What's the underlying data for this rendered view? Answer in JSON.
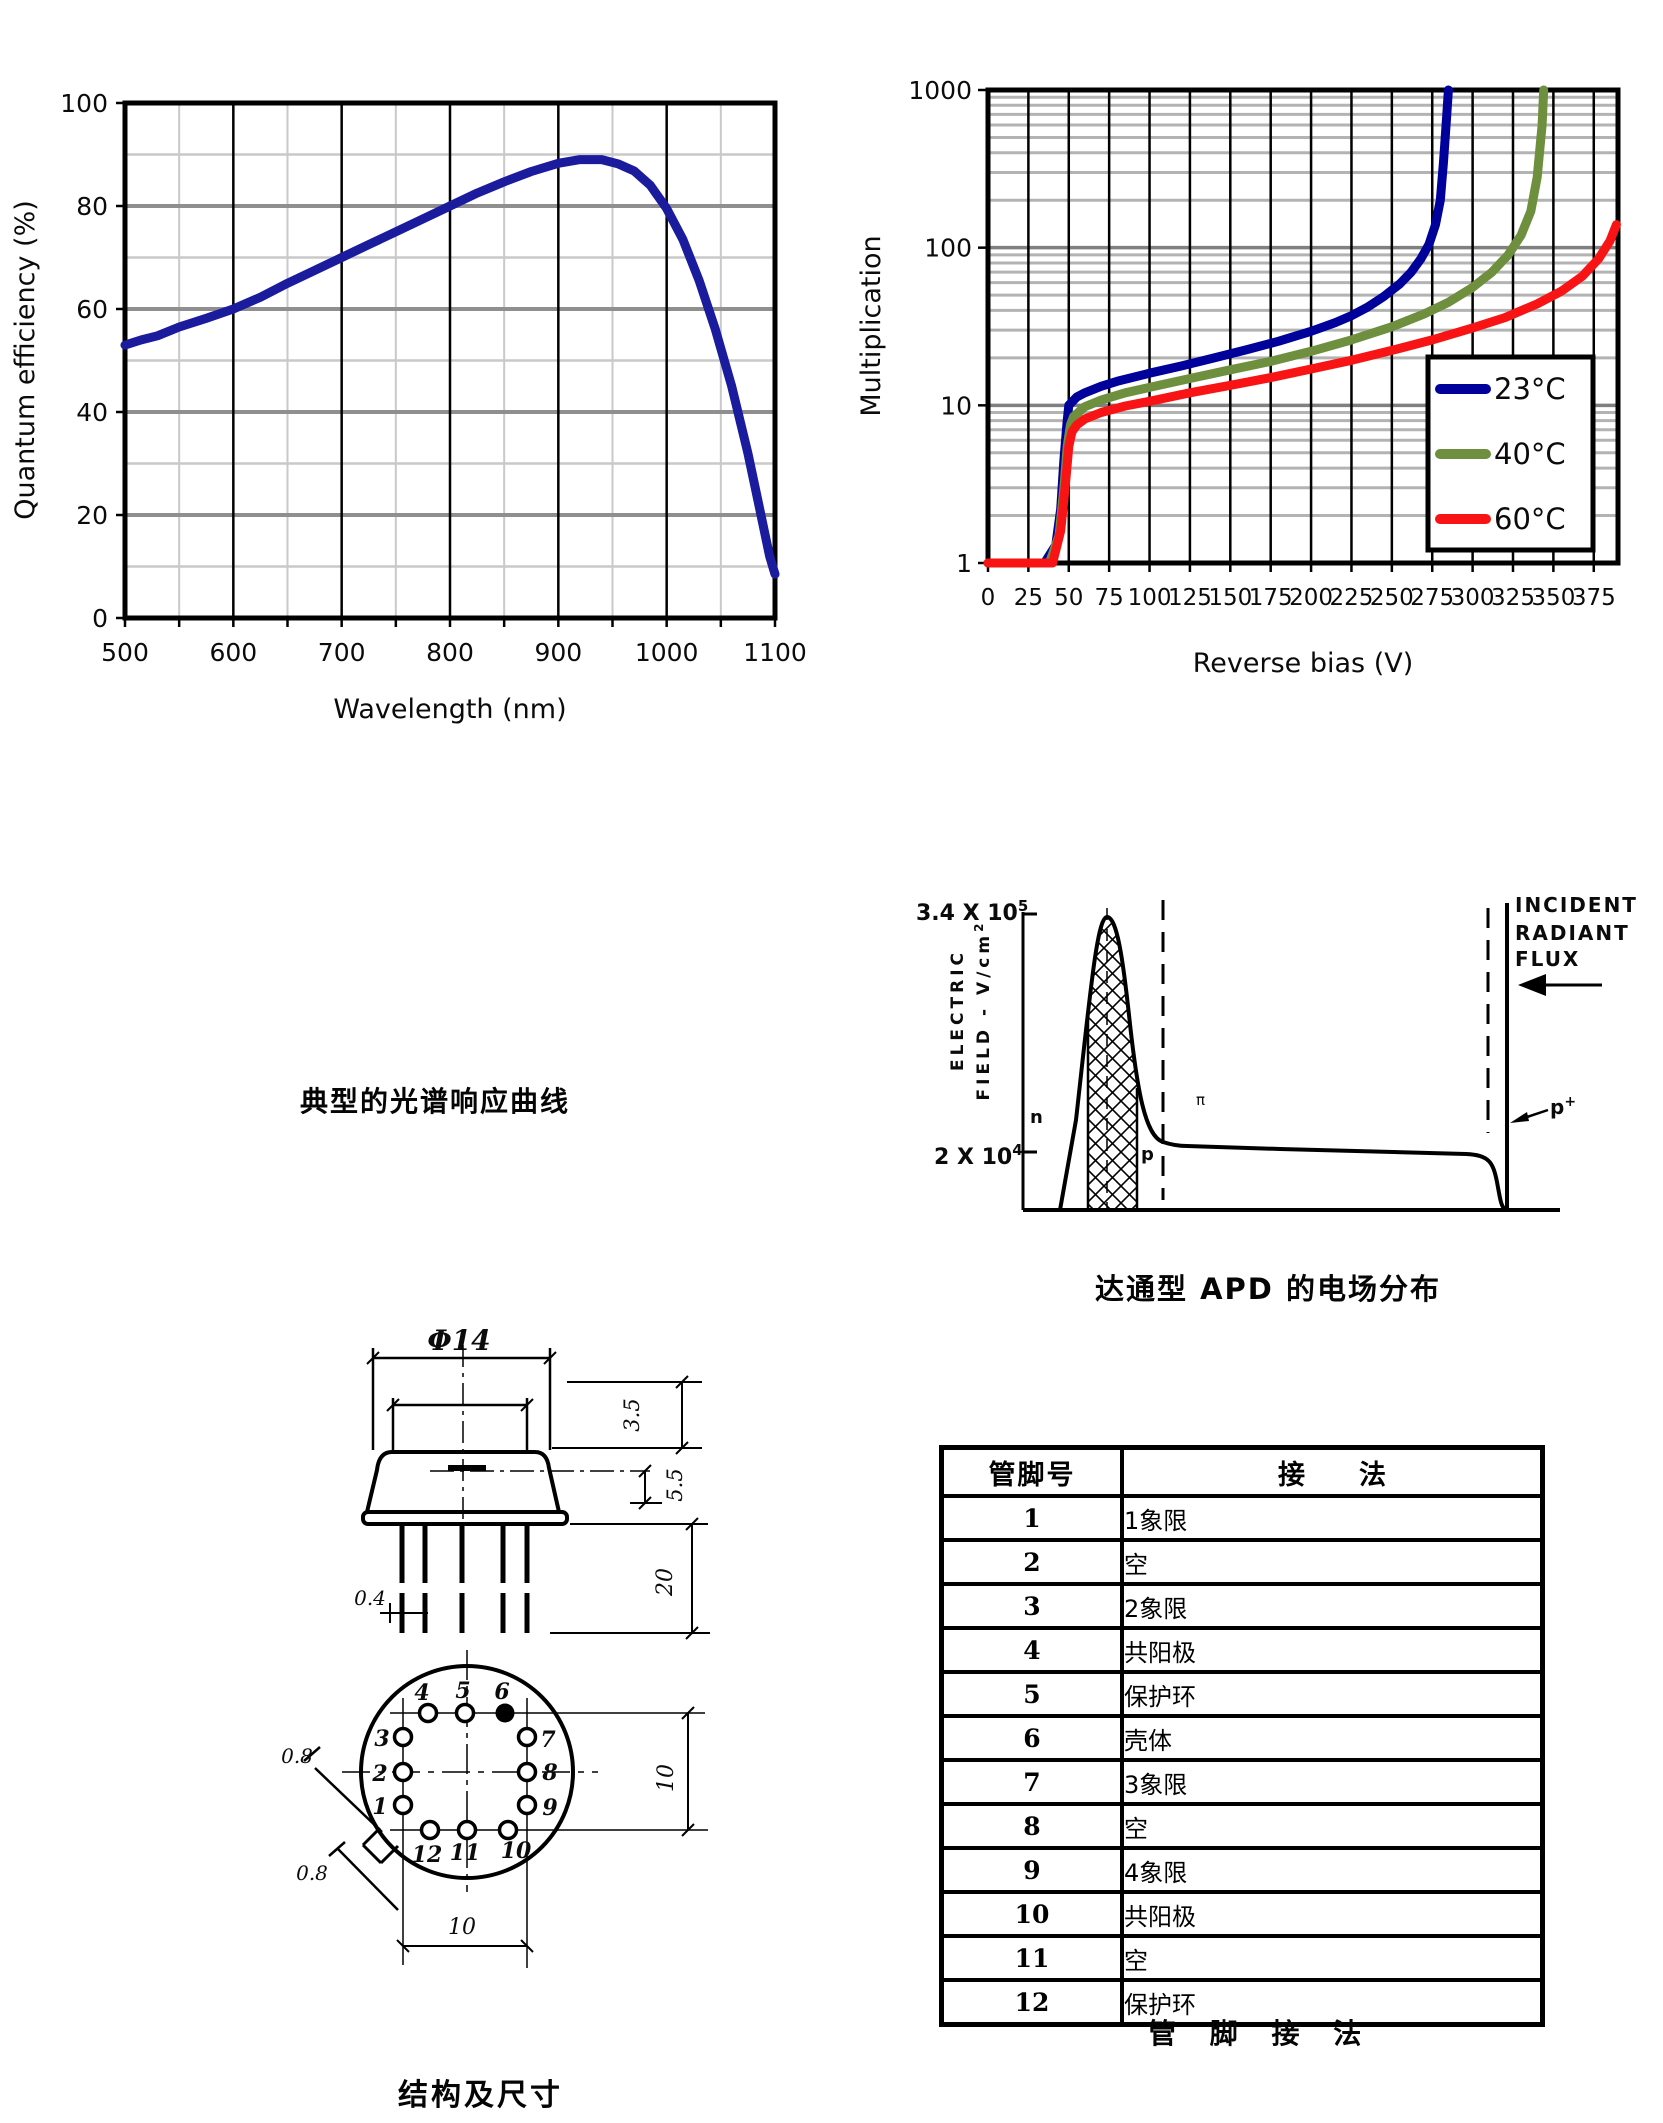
{
  "chart_data": [
    {
      "type": "line",
      "title": "",
      "xlabel": "Wavelength (nm)",
      "ylabel": "Quantum efficiency (%)",
      "xlim": [
        500,
        1100
      ],
      "ylim": [
        0,
        100
      ],
      "x_ticks": [
        500,
        600,
        700,
        800,
        900,
        1000,
        1100
      ],
      "x_minor_step": 50,
      "y_ticks": [
        0,
        20,
        40,
        60,
        80,
        100
      ],
      "y_minor_step": 10,
      "grid": "on",
      "legend_position": "none",
      "line_color": "#1b1b9e",
      "points": [
        [
          500,
          53
        ],
        [
          515,
          54
        ],
        [
          530,
          54.8
        ],
        [
          550,
          56.5
        ],
        [
          575,
          58.2
        ],
        [
          600,
          60
        ],
        [
          625,
          62.3
        ],
        [
          650,
          65
        ],
        [
          675,
          67.5
        ],
        [
          700,
          70
        ],
        [
          725,
          72.5
        ],
        [
          750,
          75
        ],
        [
          775,
          77.5
        ],
        [
          800,
          80
        ],
        [
          825,
          82.5
        ],
        [
          850,
          84.7
        ],
        [
          875,
          86.7
        ],
        [
          900,
          88.3
        ],
        [
          920,
          89
        ],
        [
          940,
          89
        ],
        [
          955,
          88.2
        ],
        [
          970,
          86.8
        ],
        [
          985,
          84
        ],
        [
          1000,
          79.5
        ],
        [
          1015,
          73.5
        ],
        [
          1030,
          65.5
        ],
        [
          1045,
          56
        ],
        [
          1060,
          45
        ],
        [
          1075,
          32
        ],
        [
          1085,
          22
        ],
        [
          1095,
          12
        ],
        [
          1100,
          8.5
        ]
      ]
    },
    {
      "type": "line",
      "title": "",
      "xlabel": "Reverse bias (V)",
      "ylabel": "Multiplication",
      "y_scale": "log",
      "xlim": [
        0,
        390
      ],
      "ylim": [
        1,
        1000
      ],
      "x_ticks": [
        0,
        25,
        50,
        75,
        100,
        125,
        150,
        175,
        200,
        225,
        250,
        275,
        300,
        325,
        350,
        375
      ],
      "y_ticks": [
        1,
        10,
        100,
        1000
      ],
      "grid": "on",
      "legend_position": "bottom-right",
      "legend": [
        {
          "label": "23°C",
          "color": "#00009b"
        },
        {
          "label": "40°C",
          "color": "#6e8f3e"
        },
        {
          "label": "60°C",
          "color": "#f81414"
        }
      ],
      "series": [
        {
          "name": "23°C",
          "color": "#00009b",
          "points": [
            [
              0,
              1
            ],
            [
              35,
              1
            ],
            [
              42,
              1.3
            ],
            [
              45,
              2.2
            ],
            [
              47,
              4.5
            ],
            [
              49,
              8
            ],
            [
              50,
              10
            ],
            [
              55,
              11.3
            ],
            [
              60,
              12
            ],
            [
              70,
              13.2
            ],
            [
              80,
              14.2
            ],
            [
              100,
              16
            ],
            [
              120,
              17.8
            ],
            [
              140,
              20
            ],
            [
              160,
              22.5
            ],
            [
              180,
              25.5
            ],
            [
              200,
              29.5
            ],
            [
              215,
              33.5
            ],
            [
              225,
              37
            ],
            [
              235,
              42
            ],
            [
              245,
              49
            ],
            [
              255,
              59
            ],
            [
              262,
              70
            ],
            [
              268,
              85
            ],
            [
              273,
              105
            ],
            [
              277,
              140
            ],
            [
              280,
              200
            ],
            [
              282,
              350
            ],
            [
              284,
              700
            ],
            [
              285,
              1000
            ]
          ]
        },
        {
          "name": "40°C",
          "color": "#6e8f3e",
          "points": [
            [
              0,
              1
            ],
            [
              38,
              1
            ],
            [
              44,
              1.5
            ],
            [
              47,
              3
            ],
            [
              49,
              5.5
            ],
            [
              51,
              7.5
            ],
            [
              53,
              8.5
            ],
            [
              60,
              9.8
            ],
            [
              70,
              10.8
            ],
            [
              85,
              12
            ],
            [
              100,
              13
            ],
            [
              125,
              14.8
            ],
            [
              150,
              16.8
            ],
            [
              175,
              19
            ],
            [
              200,
              22
            ],
            [
              225,
              26
            ],
            [
              250,
              31.5
            ],
            [
              270,
              38
            ],
            [
              285,
              45
            ],
            [
              300,
              56
            ],
            [
              312,
              70
            ],
            [
              322,
              90
            ],
            [
              330,
              120
            ],
            [
              336,
              170
            ],
            [
              340,
              280
            ],
            [
              343,
              600
            ],
            [
              344,
              1000
            ]
          ]
        },
        {
          "name": "60°C",
          "color": "#f81414",
          "points": [
            [
              0,
              1
            ],
            [
              40,
              1
            ],
            [
              45,
              1.6
            ],
            [
              48,
              3.2
            ],
            [
              50,
              5.5
            ],
            [
              52,
              6.8
            ],
            [
              55,
              7.5
            ],
            [
              60,
              8.2
            ],
            [
              70,
              9
            ],
            [
              85,
              9.9
            ],
            [
              100,
              10.6
            ],
            [
              125,
              12
            ],
            [
              150,
              13.4
            ],
            [
              175,
              15
            ],
            [
              200,
              17
            ],
            [
              225,
              19.3
            ],
            [
              250,
              22.3
            ],
            [
              275,
              26
            ],
            [
              300,
              31
            ],
            [
              320,
              36
            ],
            [
              340,
              44
            ],
            [
              355,
              53
            ],
            [
              368,
              66
            ],
            [
              378,
              85
            ],
            [
              385,
              110
            ],
            [
              389,
              140
            ]
          ]
        }
      ]
    }
  ],
  "captions": {
    "spectral": "典型的光谱响应曲线",
    "efield": "达通型 APD 的电场分布",
    "structure": "结构及尺寸",
    "pinout": "管 脚 接 法"
  },
  "efield": {
    "ymax_base": "3.4 X 10",
    "ymax_exp": "5",
    "ymin_base": "2 X 10",
    "ymin_exp": "4",
    "ylabel_line1": "ELECTRIC",
    "ylabel_line2_base": "FIELD - V/cm",
    "ylabel_line2_exp": "2",
    "flux_line1": "INCIDENT",
    "flux_line2": "RADIANT",
    "flux_line3": "FLUX",
    "region_n": "n",
    "region_p": "p",
    "region_pi": "π",
    "region_pplus_base": "p",
    "region_pplus_exp": "+"
  },
  "drawing": {
    "dim_phi": "Φ14",
    "dim_3_5": "3.5",
    "dim_5_5": "5.5",
    "dim_0_4": "0.4",
    "dim_20": "20",
    "dim_0_8_a": "0.8",
    "dim_0_8_b": "0.8",
    "dim_10_right": "10",
    "dim_10_bottom": "10",
    "pins": [
      "1",
      "2",
      "3",
      "4",
      "5",
      "6",
      "7",
      "8",
      "9",
      "10",
      "11",
      "12"
    ]
  },
  "pin_table": {
    "headers": [
      "管脚号",
      "接　　法"
    ],
    "rows": [
      {
        "pin": "1",
        "conn": "1象限"
      },
      {
        "pin": "2",
        "conn": "空"
      },
      {
        "pin": "3",
        "conn": "2象限"
      },
      {
        "pin": "4",
        "conn": "共阳极"
      },
      {
        "pin": "5",
        "conn": "保护环"
      },
      {
        "pin": "6",
        "conn": "壳体"
      },
      {
        "pin": "7",
        "conn": "3象限"
      },
      {
        "pin": "8",
        "conn": "空"
      },
      {
        "pin": "9",
        "conn": "4象限"
      },
      {
        "pin": "10",
        "conn": "共阳极"
      },
      {
        "pin": "11",
        "conn": "空"
      },
      {
        "pin": "12",
        "conn": "保护环"
      }
    ]
  }
}
